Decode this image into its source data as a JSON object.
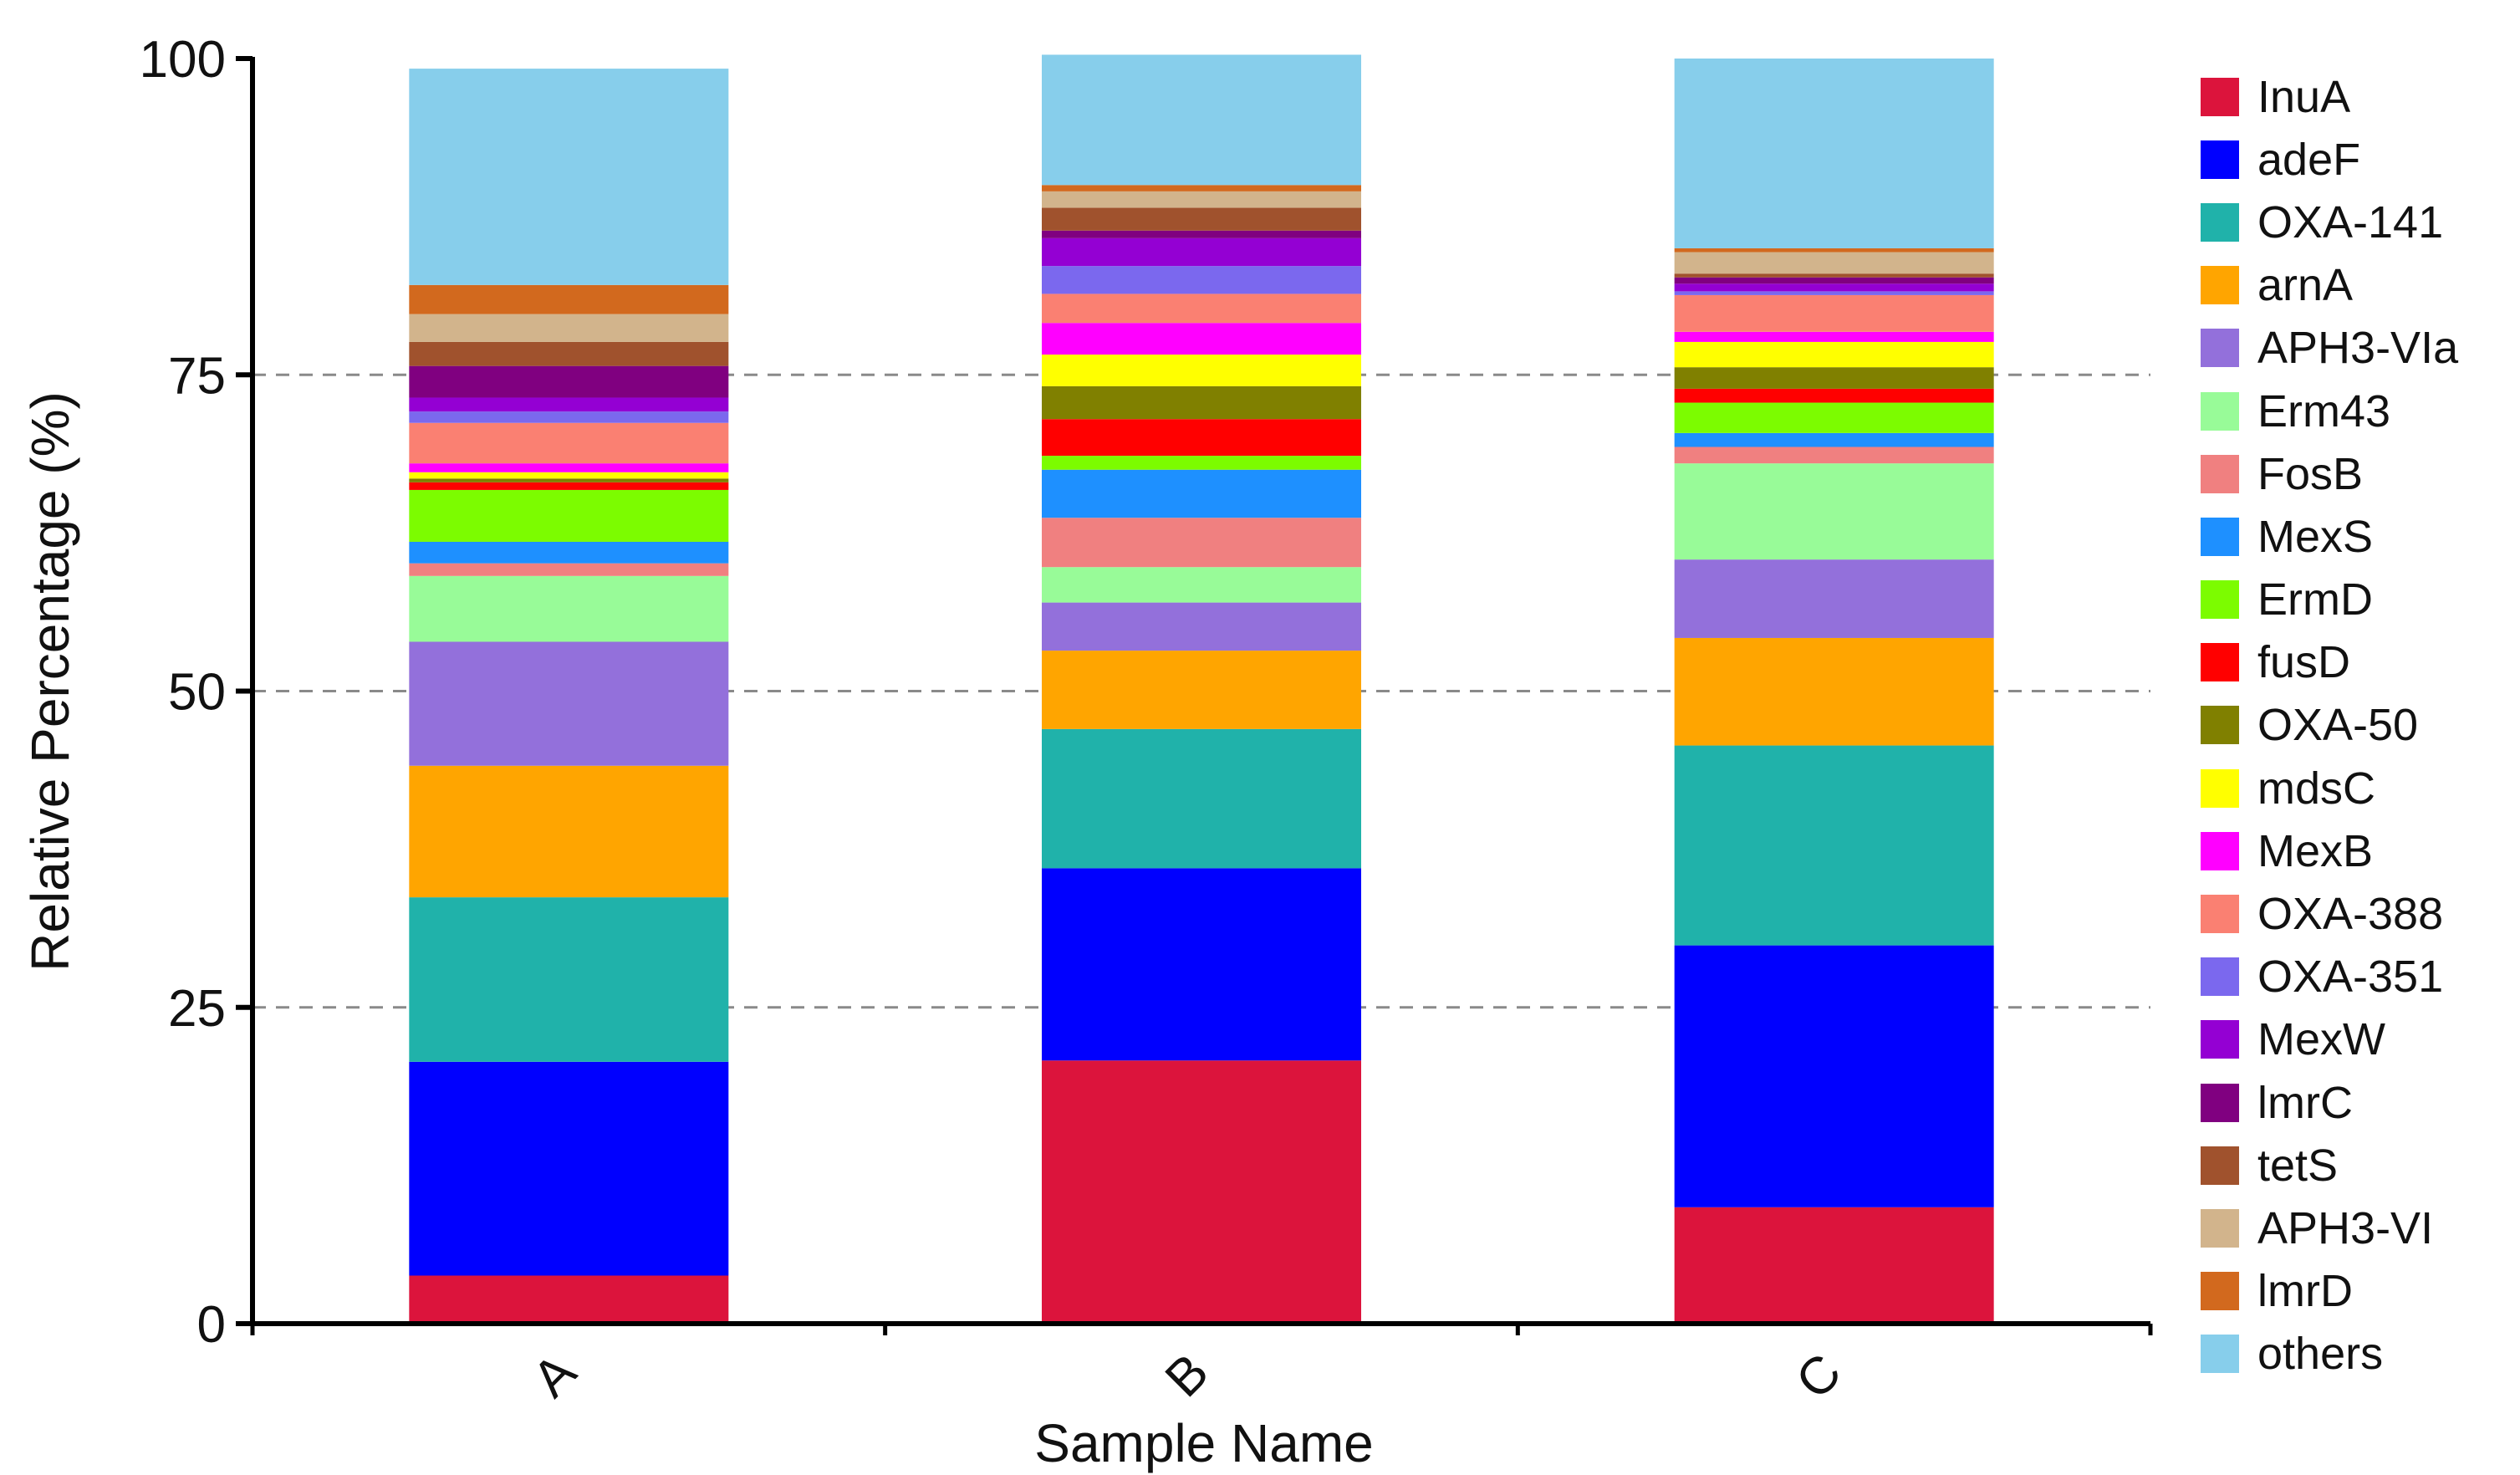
{
  "chart_data": {
    "type": "bar",
    "stacked": true,
    "title": "",
    "xlabel": "Sample Name",
    "ylabel": "Relative Percentage (%)",
    "ylim": [
      0,
      100
    ],
    "yticks": [
      0,
      25,
      50,
      75,
      100
    ],
    "grid": "horizontal dashed at 25, 50, 75",
    "legend_position": "right",
    "categories": [
      "A",
      "B",
      "C"
    ],
    "series": [
      {
        "name": "InuA",
        "color": "#DC143C",
        "values": [
          3.8,
          20.8,
          9.2
        ]
      },
      {
        "name": "adeF",
        "color": "#0000FF",
        "values": [
          16.9,
          15.2,
          20.7
        ]
      },
      {
        "name": "OXA-141",
        "color": "#20B2AA",
        "values": [
          13.0,
          11.0,
          15.8
        ]
      },
      {
        "name": "arnA",
        "color": "#FFA500",
        "values": [
          10.4,
          6.2,
          8.5
        ]
      },
      {
        "name": "APH3-VIa",
        "color": "#9370DB",
        "values": [
          9.8,
          3.8,
          6.2
        ]
      },
      {
        "name": "Erm43",
        "color": "#98FB98",
        "values": [
          5.2,
          2.8,
          7.6
        ]
      },
      {
        "name": "FosB",
        "color": "#F08080",
        "values": [
          1.0,
          3.9,
          1.3
        ]
      },
      {
        "name": "MexS",
        "color": "#1E90FF",
        "values": [
          1.7,
          3.8,
          1.1
        ]
      },
      {
        "name": "ErmD",
        "color": "#7CFC00",
        "values": [
          4.1,
          1.1,
          2.4
        ]
      },
      {
        "name": "fusD",
        "color": "#FF0000",
        "values": [
          0.6,
          2.9,
          1.1
        ]
      },
      {
        "name": "OXA-50",
        "color": "#808000",
        "values": [
          0.3,
          2.6,
          1.7
        ]
      },
      {
        "name": "mdsC",
        "color": "#FFFF00",
        "values": [
          0.5,
          2.5,
          2.0
        ]
      },
      {
        "name": "MexB",
        "color": "#FF00FF",
        "values": [
          0.7,
          2.5,
          0.8
        ]
      },
      {
        "name": "OXA-388",
        "color": "#FA8072",
        "values": [
          3.2,
          2.3,
          2.9
        ]
      },
      {
        "name": "OXA-351",
        "color": "#7B68EE",
        "values": [
          0.9,
          2.2,
          0.3
        ]
      },
      {
        "name": "MexW",
        "color": "#9400D3",
        "values": [
          1.1,
          2.2,
          0.6
        ]
      },
      {
        "name": "lmrC",
        "color": "#800080",
        "values": [
          2.5,
          0.6,
          0.5
        ]
      },
      {
        "name": "tetS",
        "color": "#A0522D",
        "values": [
          1.9,
          1.8,
          0.3
        ]
      },
      {
        "name": "APH3-VI",
        "color": "#D2B48C",
        "values": [
          2.2,
          1.3,
          1.7
        ]
      },
      {
        "name": "lmrD",
        "color": "#D2691E",
        "values": [
          2.3,
          0.5,
          0.3
        ]
      },
      {
        "name": "others",
        "color": "#87CEEB",
        "values": [
          17.1,
          10.3,
          15.0
        ]
      }
    ]
  }
}
